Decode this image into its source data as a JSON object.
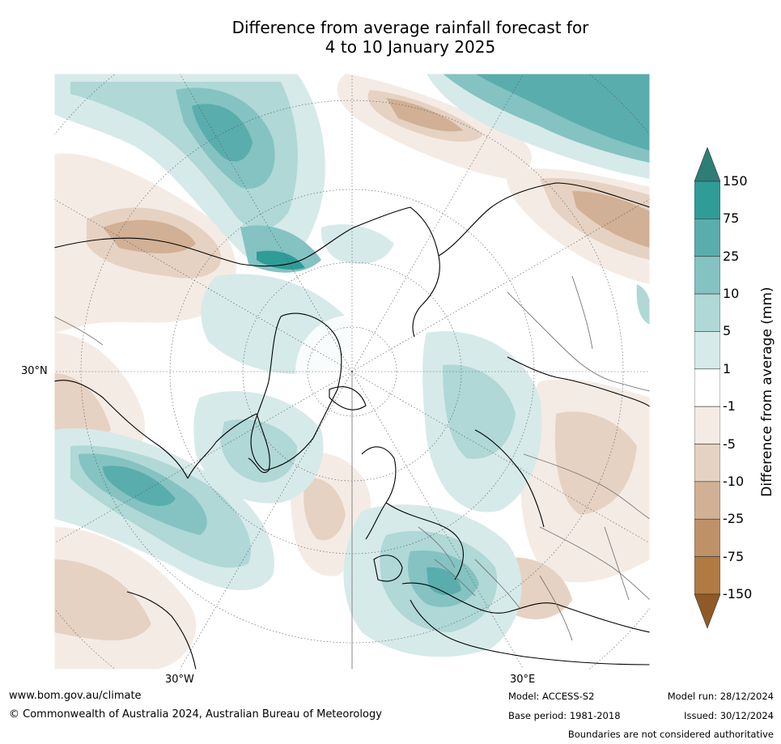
{
  "title_line1": "Difference from average rainfall forecast for",
  "title_line2": "4 to 10 January 2025",
  "map": {
    "projection": "north polar stereographic",
    "lat_label": "30°N",
    "lon_labels": [
      "30°W",
      "30°E"
    ],
    "contours_drawn": "approximate patches of rainfall anomaly"
  },
  "colorbar": {
    "label": "Difference from average (mm)",
    "ticks": [
      "150",
      "75",
      "25",
      "10",
      "5",
      "1",
      "-1",
      "-5",
      "-10",
      "-25",
      "-75",
      "-150"
    ],
    "colors": [
      "#2e7e78",
      "#2f9c98",
      "#5aadad",
      "#84c3c2",
      "#afd8d7",
      "#d6eae9",
      "#ffffff",
      "#f5ebe5",
      "#e6d2c2",
      "#d1b095",
      "#bf9168",
      "#b07a43",
      "#8f5a25"
    ]
  },
  "footer": {
    "url": "www.bom.gov.au/climate",
    "copyright": "© Commonwealth of Australia 2024, Australian Bureau of Meteorology",
    "model": "Model: ACCESS-S2",
    "base_period": "Base period: 1981-2018",
    "model_run": "Model run: 28/12/2024",
    "issued": "Issued: 30/12/2024",
    "disclaimer": "Boundaries are not considered authoritative"
  }
}
